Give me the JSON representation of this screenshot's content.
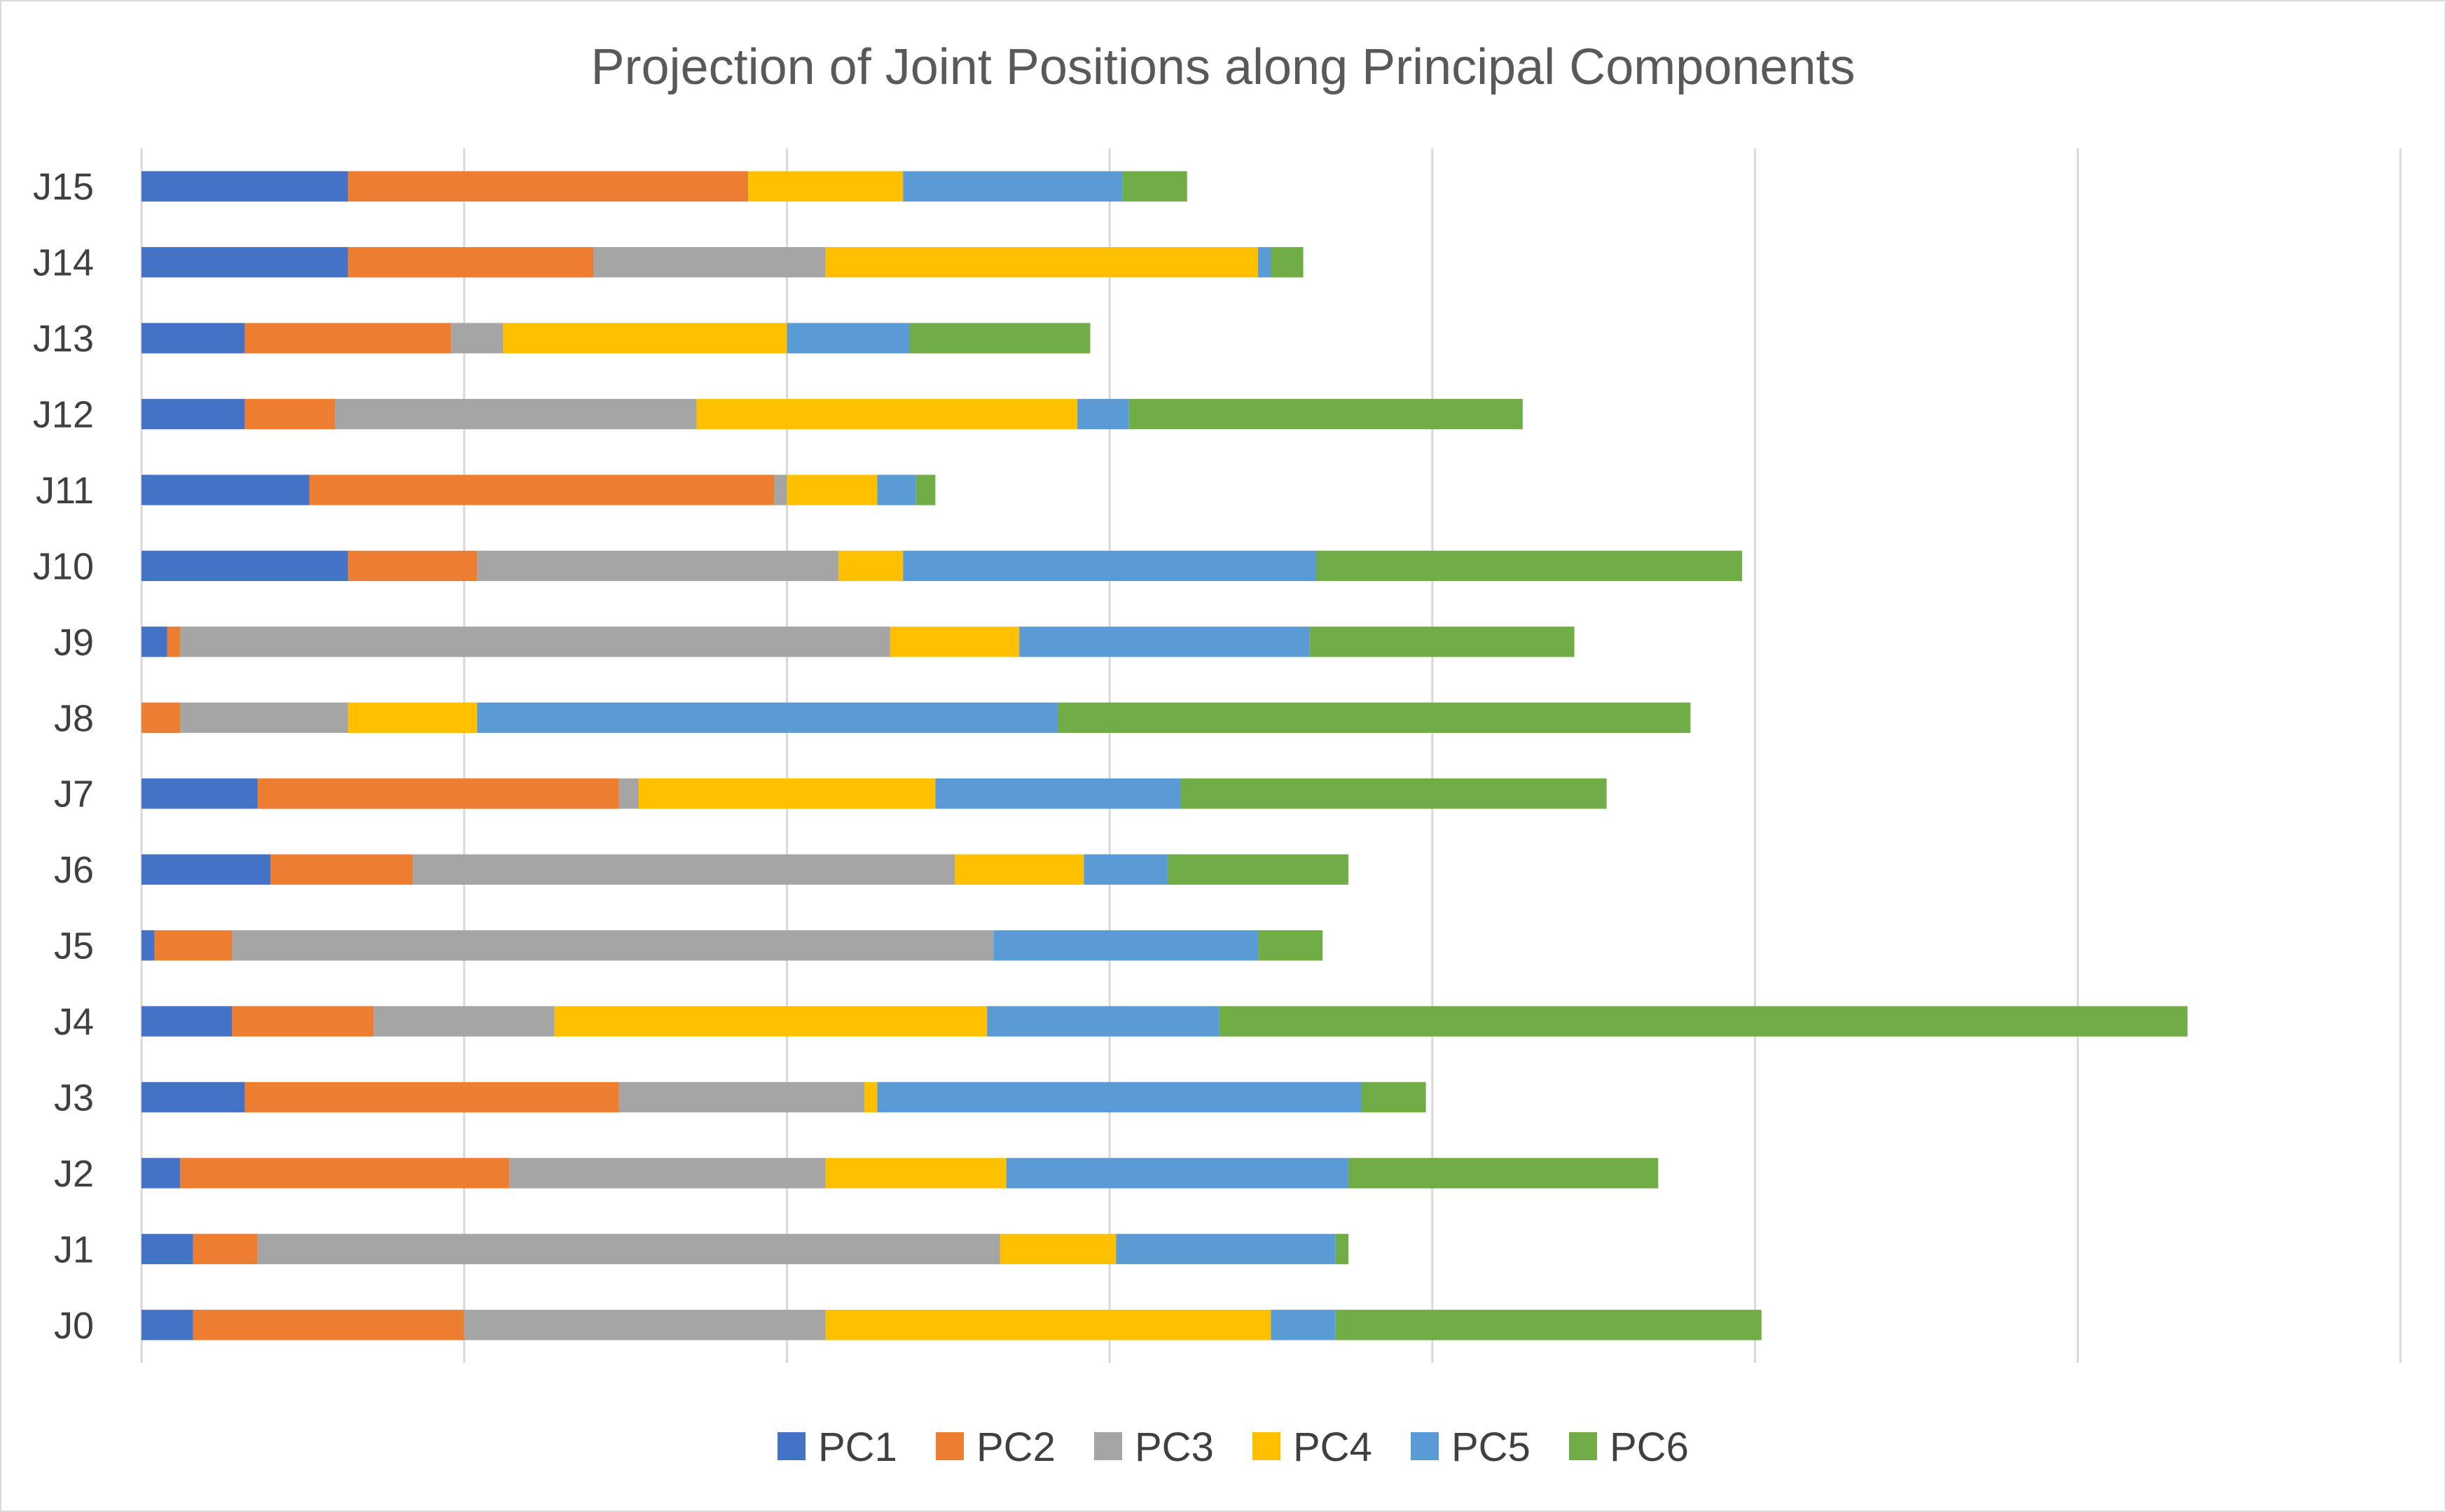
{
  "chart_data": {
    "type": "bar",
    "orientation": "horizontal",
    "stacked": true,
    "title": "Projection of Joint Positions along Principal Components",
    "xlabel": "",
    "ylabel": "",
    "xlim": [
      0,
      35
    ],
    "x_tick_step": 5,
    "x_tick_labels_shown": false,
    "grid": true,
    "legend": "bottom",
    "categories": [
      "J0",
      "J1",
      "J2",
      "J3",
      "J4",
      "J5",
      "J6",
      "J7",
      "J8",
      "J9",
      "J10",
      "J11",
      "J12",
      "J13",
      "J14",
      "J15"
    ],
    "series": [
      {
        "name": "PC1",
        "color": "#4472C4",
        "values": [
          0.8,
          0.8,
          0.6,
          1.6,
          1.4,
          0.2,
          2.0,
          1.8,
          0.0,
          0.4,
          3.2,
          2.6,
          1.6,
          1.6,
          3.2,
          3.2
        ]
      },
      {
        "name": "PC2",
        "color": "#ED7D31",
        "values": [
          4.2,
          1.0,
          5.1,
          5.8,
          2.2,
          1.2,
          2.2,
          5.6,
          0.6,
          0.2,
          2.0,
          7.2,
          1.4,
          3.2,
          3.8,
          6.2
        ]
      },
      {
        "name": "PC3",
        "color": "#A5A5A5",
        "values": [
          5.6,
          11.5,
          4.9,
          3.8,
          2.8,
          11.8,
          8.4,
          0.3,
          2.6,
          11.0,
          5.6,
          0.2,
          5.6,
          0.8,
          3.6,
          0.0
        ]
      },
      {
        "name": "PC4",
        "color": "#FFC000",
        "values": [
          6.9,
          1.8,
          2.8,
          0.2,
          6.7,
          0.0,
          2.0,
          4.6,
          2.0,
          2.0,
          1.0,
          1.4,
          5.9,
          4.4,
          6.7,
          2.4
        ]
      },
      {
        "name": "PC5",
        "color": "#5B9BD5",
        "values": [
          1.0,
          3.4,
          5.3,
          7.5,
          3.6,
          4.1,
          1.3,
          3.8,
          9.0,
          4.5,
          6.4,
          0.6,
          0.8,
          1.9,
          0.2,
          3.4
        ]
      },
      {
        "name": "PC6",
        "color": "#70AD47",
        "values": [
          6.6,
          0.2,
          4.8,
          1.0,
          15.0,
          1.0,
          2.8,
          6.6,
          9.8,
          4.1,
          6.6,
          0.3,
          6.1,
          2.8,
          0.5,
          1.0
        ]
      }
    ]
  }
}
